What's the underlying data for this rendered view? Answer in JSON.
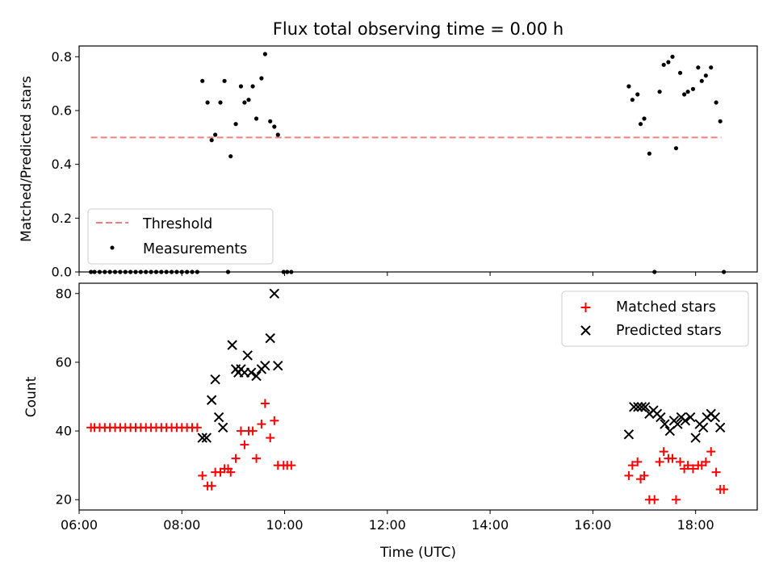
{
  "chart_data": [
    {
      "type": "scatter",
      "title": "Flux total observing time = 0.00 h",
      "xlabel": "",
      "ylabel": "Matched/Predicted stars",
      "xlim": [
        6.0,
        19.2
      ],
      "ylim": [
        0.0,
        0.84
      ],
      "yticks": [
        0.0,
        0.2,
        0.4,
        0.6,
        0.8
      ],
      "ytick_labels": [
        "0.0",
        "0.2",
        "0.4",
        "0.6",
        "0.8"
      ],
      "xticks": [
        6,
        8,
        10,
        12,
        14,
        16,
        18
      ],
      "legend": {
        "placement": "lower-left",
        "entries": [
          "Threshold",
          "Measurements"
        ]
      },
      "threshold": {
        "name": "Threshold",
        "value": 0.5,
        "x_start": 6.23,
        "x_end": 18.5,
        "color": "#f08080",
        "style": "dashed"
      },
      "series": [
        {
          "name": "Measurements",
          "color": "#000000",
          "marker": "dot",
          "x": [
            6.23,
            6.3,
            6.4,
            6.5,
            6.6,
            6.7,
            6.8,
            6.9,
            7.0,
            7.1,
            7.2,
            7.3,
            7.4,
            7.5,
            7.6,
            7.7,
            7.8,
            7.9,
            8.0,
            8.1,
            8.2,
            8.3,
            8.4,
            8.5,
            8.58,
            8.65,
            8.75,
            8.83,
            8.9,
            8.95,
            9.05,
            9.15,
            9.22,
            9.3,
            9.38,
            9.45,
            9.55,
            9.62,
            9.72,
            9.8,
            9.87,
            9.98,
            10.05,
            10.13,
            16.7,
            16.77,
            16.87,
            16.93,
            17.0,
            17.1,
            17.2,
            17.3,
            17.38,
            17.47,
            17.55,
            17.62,
            17.7,
            17.78,
            17.85,
            17.95,
            18.05,
            18.12,
            18.2,
            18.3,
            18.4,
            18.48,
            18.55
          ],
          "y": [
            0,
            0,
            0,
            0,
            0,
            0,
            0,
            0,
            0,
            0,
            0,
            0,
            0,
            0,
            0,
            0,
            0,
            0,
            0,
            0,
            0,
            0,
            0.71,
            0.63,
            0.49,
            0.51,
            0.63,
            0.71,
            0,
            0.43,
            0.55,
            0.69,
            0.63,
            0.64,
            0.69,
            0.57,
            0.72,
            0.81,
            0.56,
            0.54,
            0.51,
            0,
            0,
            0,
            0.69,
            0.64,
            0.66,
            0.55,
            0.57,
            0.44,
            0,
            0.67,
            0.77,
            0.78,
            0.8,
            0.46,
            0.74,
            0.66,
            0.67,
            0.68,
            0.76,
            0.71,
            0.73,
            0.76,
            0.63,
            0.56,
            0
          ]
        }
      ]
    },
    {
      "type": "scatter",
      "title": "",
      "xlabel": "Time (UTC)",
      "ylabel": "Count",
      "xlim": [
        6.0,
        19.2
      ],
      "ylim": [
        17,
        83
      ],
      "yticks": [
        20,
        40,
        60,
        80
      ],
      "ytick_labels": [
        "20",
        "40",
        "60",
        "80"
      ],
      "xticks": [
        6,
        8,
        10,
        12,
        14,
        16,
        18
      ],
      "xtick_labels": [
        "06:00",
        "08:00",
        "10:00",
        "12:00",
        "14:00",
        "16:00",
        "18:00"
      ],
      "legend": {
        "placement": "upper-right",
        "entries": [
          "Matched stars",
          "Predicted stars"
        ]
      },
      "series": [
        {
          "name": "Matched stars",
          "color": "#ff0000",
          "marker": "plus",
          "x": [
            6.23,
            6.3,
            6.4,
            6.5,
            6.6,
            6.7,
            6.8,
            6.9,
            7.0,
            7.1,
            7.2,
            7.3,
            7.4,
            7.5,
            7.6,
            7.7,
            7.8,
            7.9,
            8.0,
            8.1,
            8.2,
            8.3,
            8.4,
            8.5,
            8.58,
            8.65,
            8.75,
            8.83,
            8.9,
            8.95,
            9.05,
            9.15,
            9.22,
            9.3,
            9.38,
            9.45,
            9.55,
            9.62,
            9.72,
            9.8,
            9.87,
            9.98,
            10.05,
            10.13,
            16.7,
            16.77,
            16.87,
            16.93,
            17.0,
            17.1,
            17.2,
            17.3,
            17.38,
            17.47,
            17.55,
            17.62,
            17.7,
            17.78,
            17.85,
            17.95,
            18.05,
            18.12,
            18.2,
            18.3,
            18.4,
            18.48,
            18.55
          ],
          "y": [
            41,
            41,
            41,
            41,
            41,
            41,
            41,
            41,
            41,
            41,
            41,
            41,
            41,
            41,
            41,
            41,
            41,
            41,
            41,
            41,
            41,
            41,
            27,
            24,
            24,
            28,
            28,
            29,
            29,
            28,
            32,
            40,
            36,
            40,
            40,
            32,
            42,
            48,
            38,
            43,
            30,
            30,
            30,
            30,
            27,
            30,
            31,
            26,
            27,
            20,
            20,
            31,
            34,
            32,
            32,
            20,
            31,
            29,
            30,
            29,
            30,
            30,
            31,
            34,
            28,
            23,
            23
          ]
        },
        {
          "name": "Predicted stars",
          "color": "#000000",
          "marker": "x",
          "x": [
            8.4,
            8.48,
            8.58,
            8.65,
            8.72,
            8.8,
            8.98,
            9.05,
            9.1,
            9.15,
            9.22,
            9.28,
            9.35,
            9.45,
            9.55,
            9.62,
            9.72,
            9.8,
            9.87,
            16.7,
            16.8,
            16.88,
            16.95,
            17.02,
            17.1,
            17.18,
            17.25,
            17.32,
            17.4,
            17.5,
            17.58,
            17.65,
            17.72,
            17.8,
            17.9,
            18.0,
            18.08,
            18.15,
            18.22,
            18.3,
            18.38,
            18.48
          ],
          "y": [
            38,
            38,
            49,
            55,
            44,
            41,
            65,
            58,
            57,
            58,
            57,
            62,
            57,
            56,
            58,
            59,
            67,
            80,
            59,
            39,
            47,
            47,
            47,
            47,
            45,
            46,
            45,
            44,
            42,
            40,
            43,
            42,
            44,
            43,
            44,
            38,
            42,
            41,
            44,
            45,
            44,
            41
          ]
        }
      ]
    }
  ]
}
